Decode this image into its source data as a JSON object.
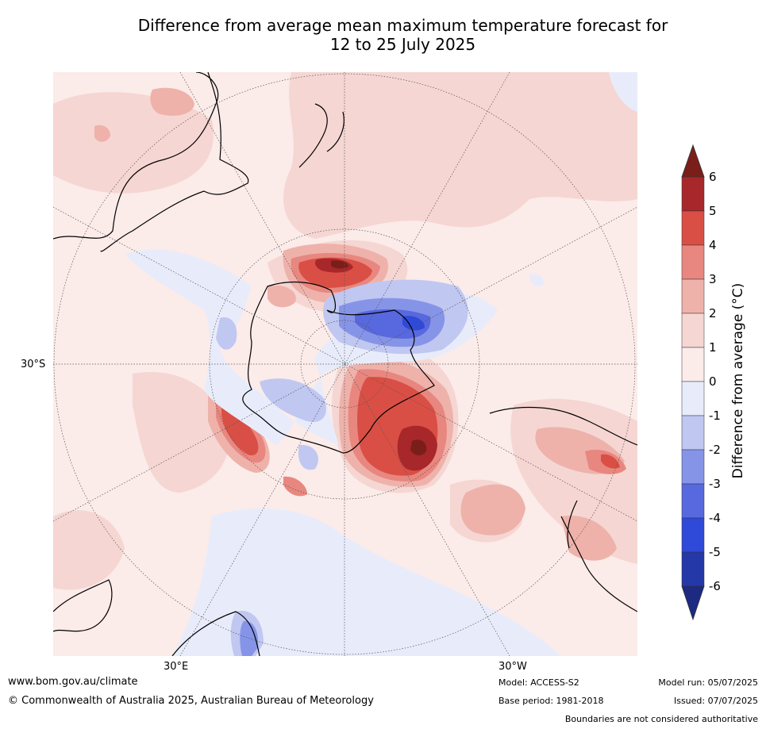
{
  "title": {
    "line1": "Difference from average mean maximum temperature forecast for",
    "line2": "12 to 25 July 2025"
  },
  "map": {
    "lat_labels": [
      "30°S"
    ],
    "lon_labels": [
      "30°E",
      "30°W"
    ]
  },
  "colorbar": {
    "title": "Difference from average (°C)",
    "ticks": [
      "6",
      "5",
      "4",
      "3",
      "2",
      "1",
      "0",
      "-1",
      "-2",
      "-3",
      "-4",
      "-5",
      "-6"
    ],
    "bins": [
      {
        "color": "#a8272a",
        "range": "5 to 6"
      },
      {
        "color": "#d94f45",
        "range": "4 to 5"
      },
      {
        "color": "#e8877f",
        "range": "3 to 4"
      },
      {
        "color": "#eeb2ab",
        "range": "2 to 3"
      },
      {
        "color": "#f5d6d2",
        "range": "1 to 2"
      },
      {
        "color": "#fbebe9",
        "range": "0 to 1"
      },
      {
        "color": "#e8ecfa",
        "range": "-1 to 0"
      },
      {
        "color": "#c0c7f1",
        "range": "-2 to -1"
      },
      {
        "color": "#8694e8",
        "range": "-3 to -2"
      },
      {
        "color": "#5868de",
        "range": "-4 to -3"
      },
      {
        "color": "#2f4ad8",
        "range": "-5 to -4"
      },
      {
        "color": "#2538a8",
        "range": "-6 to -5"
      }
    ],
    "extend_top_color": "#7a1e1a",
    "extend_bottom_color": "#1c2a82"
  },
  "footer": {
    "url": "www.bom.gov.au/climate",
    "copyright": "© Commonwealth of Australia 2025, Australian Bureau of Meteorology",
    "model": "Model: ACCESS-S2",
    "base_period": "Base period: 1981-2018",
    "model_run": "Model run: 05/07/2025",
    "issued": "Issued: 07/07/2025",
    "disclaimer": "Boundaries are not considered authoritative"
  }
}
